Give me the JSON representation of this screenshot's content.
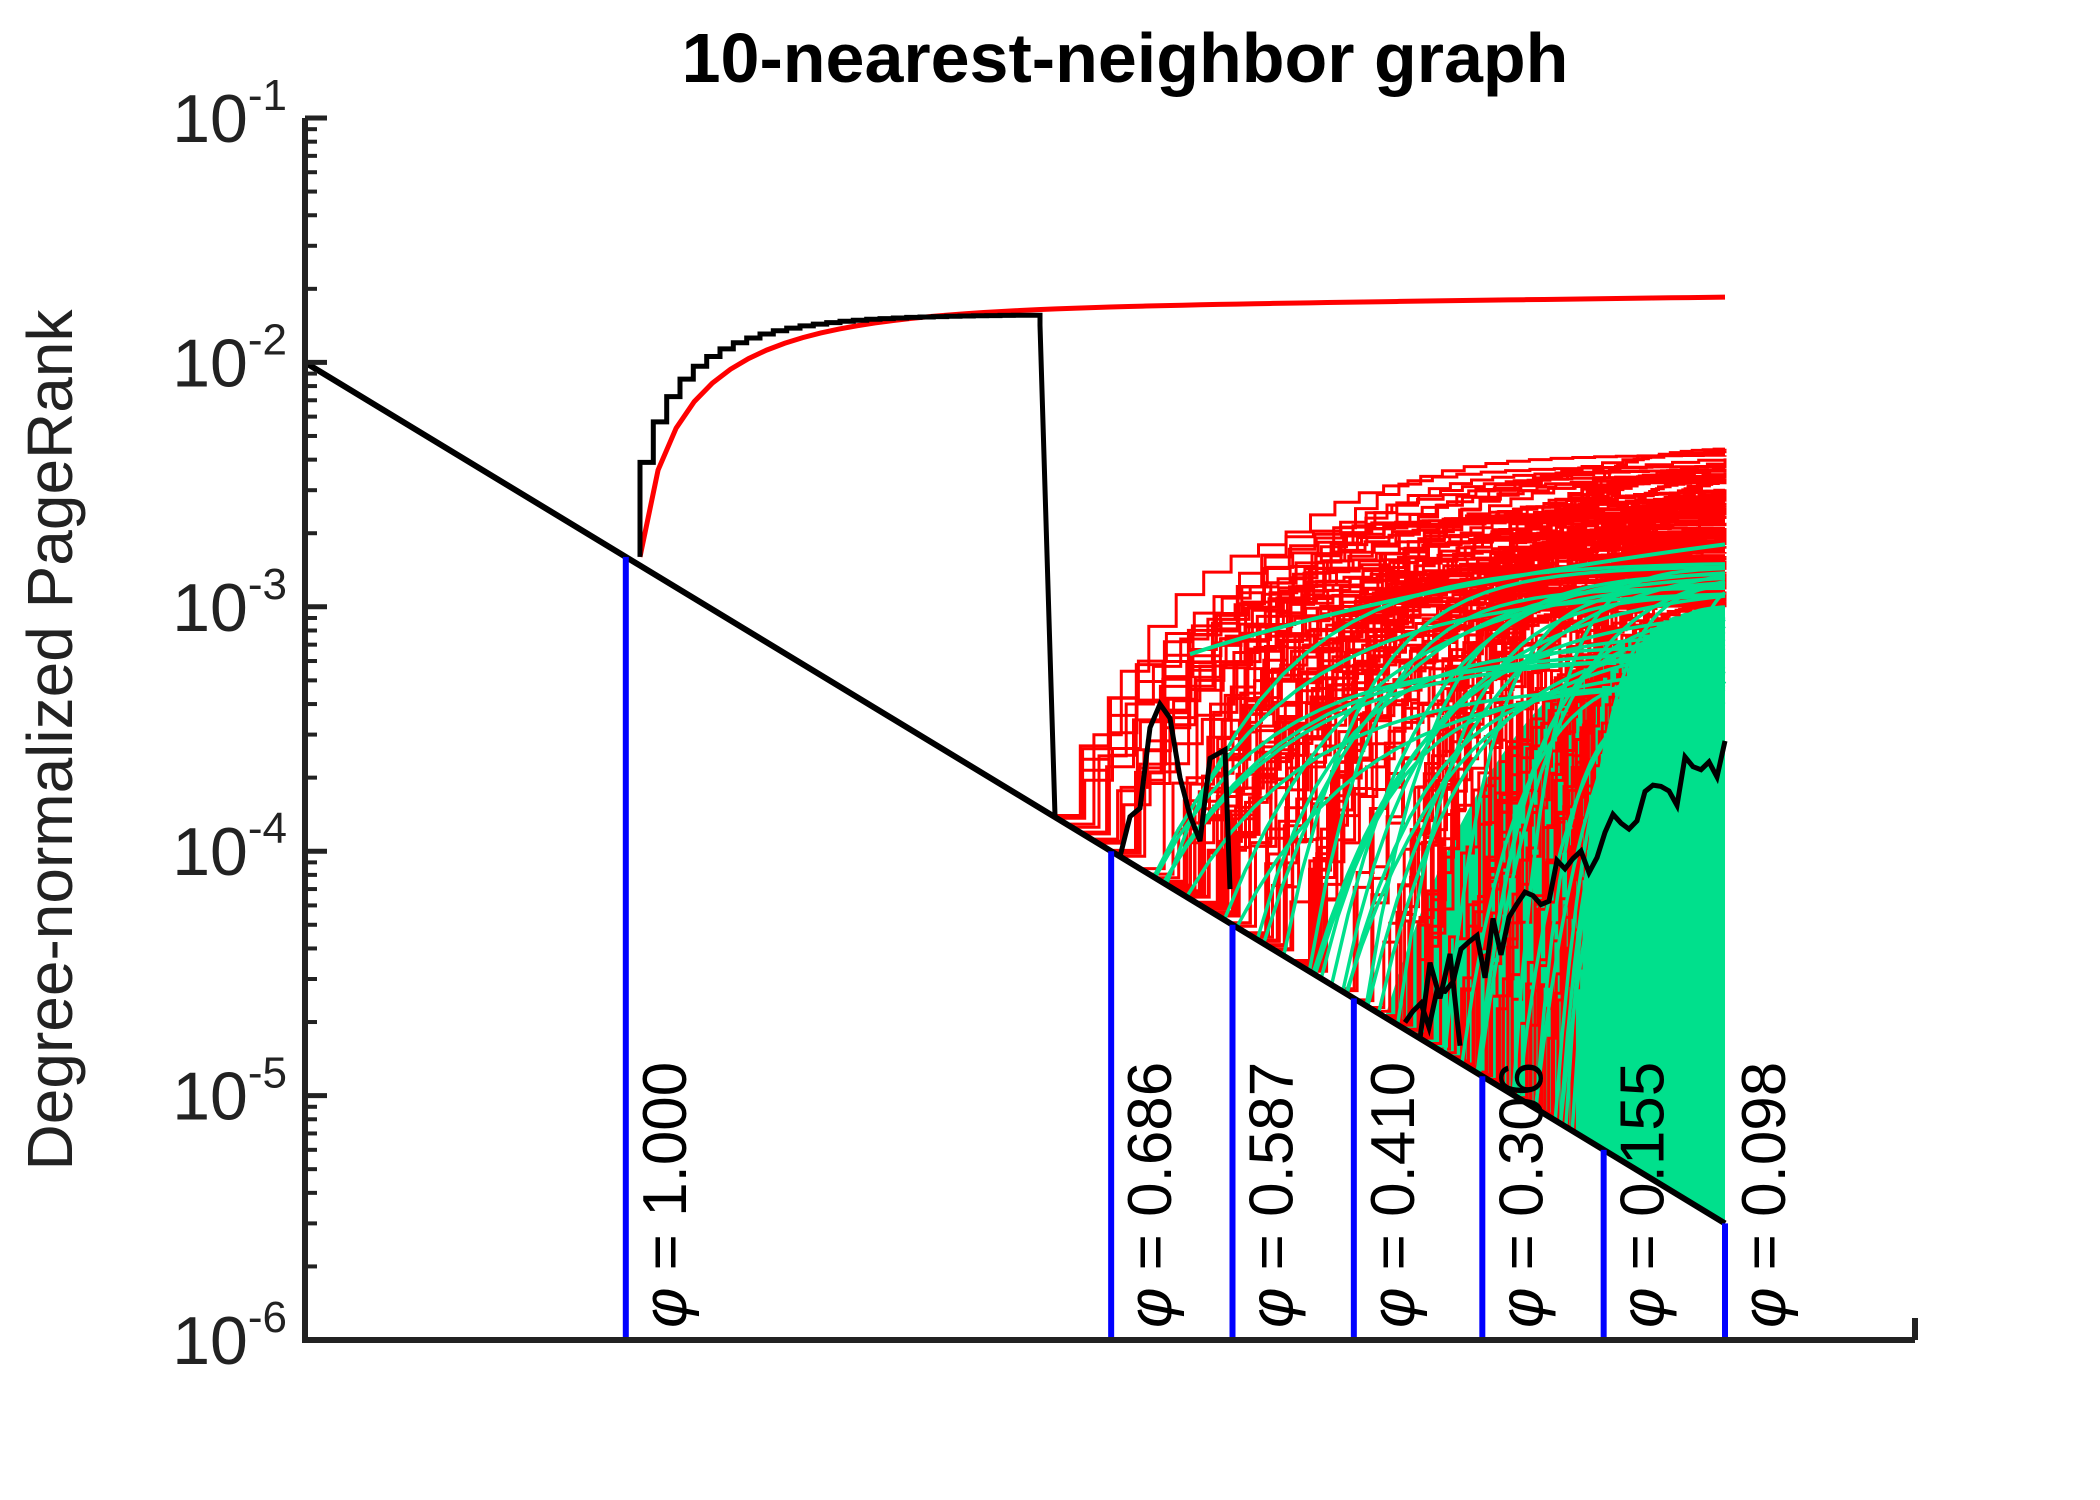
{
  "chart_data": {
    "type": "line",
    "title": "10-nearest-neighbor graph",
    "xlabel": "",
    "ylabel": "Degree-normalized PageRank",
    "y_scale": "log",
    "ylim": [
      1e-06,
      0.1
    ],
    "y_ticks": [
      {
        "value": 1e-06,
        "base": "10",
        "exp": "-6"
      },
      {
        "value": 1e-05,
        "base": "10",
        "exp": "-5"
      },
      {
        "value": 0.0001,
        "base": "10",
        "exp": "-4"
      },
      {
        "value": 0.001,
        "base": "10",
        "exp": "-3"
      },
      {
        "value": 0.01,
        "base": "10",
        "exp": "-2"
      },
      {
        "value": 0.1,
        "base": "10",
        "exp": "-1"
      }
    ],
    "x_ticks_shown": false,
    "grid": false,
    "colors": {
      "frontier": "#000000",
      "red_series": "#ff0000",
      "green_series": "#00e08c",
      "markers": "#0000ff",
      "axis": "#222222"
    },
    "threshold_label": "1.000 — 0.098",
    "thresholds": [
      {
        "phi": "1.000",
        "y": 0.0016
      },
      {
        "phi": "0.686",
        "y": 0.0001
      },
      {
        "phi": "0.587",
        "y": 5e-05
      },
      {
        "phi": "0.410",
        "y": 2.5e-05
      },
      {
        "phi": "0.306",
        "y": 1.2e-05
      },
      {
        "phi": "0.155",
        "y": 6e-06
      },
      {
        "phi": "0.098",
        "y": 3e-06
      }
    ],
    "phi_symbol": "φ",
    "phi_prefix": " = "
  }
}
